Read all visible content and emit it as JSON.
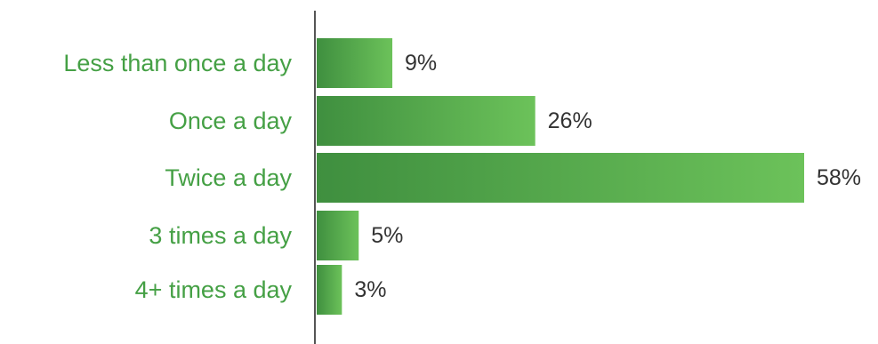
{
  "chart_data": {
    "type": "bar",
    "orientation": "horizontal",
    "categories": [
      "Less than once a day",
      "Once a day",
      "Twice a day",
      "3 times a day",
      "4+ times a day"
    ],
    "values": [
      9,
      26,
      58,
      5,
      3
    ],
    "value_labels": [
      "9%",
      "26%",
      "58%",
      "5%",
      "3%"
    ],
    "xlim": [
      0,
      58
    ],
    "grid": false,
    "legend": "none",
    "colors": {
      "bar_dark": "#3f8f3f",
      "bar_light": "#6cc25a",
      "category_label": "#45a045",
      "value_label": "#333333",
      "axis": "#555555"
    }
  }
}
